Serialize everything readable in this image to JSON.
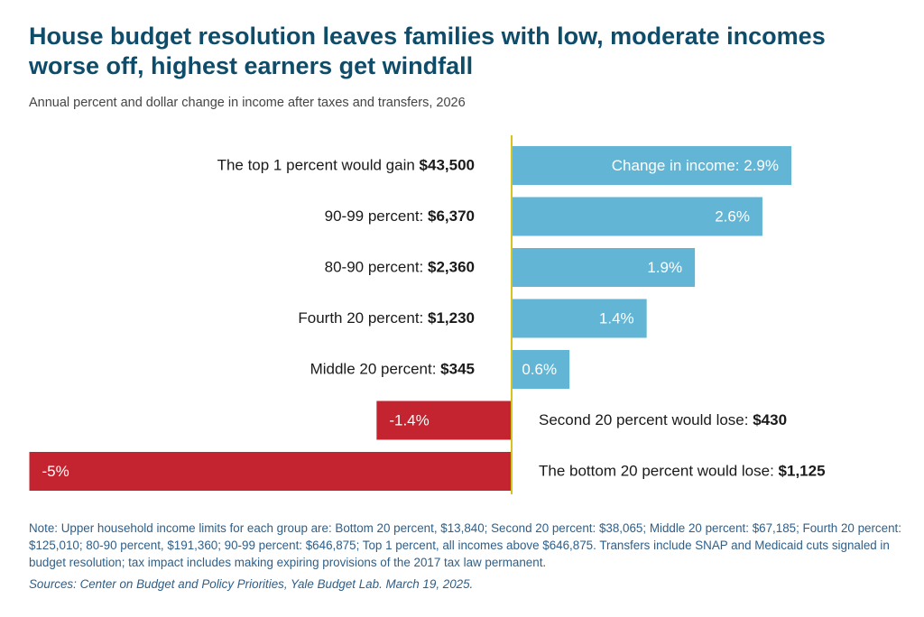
{
  "title": "House budget resolution leaves families with low, moderate incomes worse off, highest earners get windfall",
  "subtitle": "Annual percent and dollar change in income after taxes and transfers, 2026",
  "note": "Note: Upper household income limits for each group are: Bottom 20 percent, $13,840; Second 20 percent: $38,065; Middle 20 percent: $67,185; Fourth 20 percent: $125,010; 80-90 percent, $191,360; 90-99 percent: $646,875; Top 1 percent, all incomes above $646,875. Transfers include SNAP and Medicaid cuts signaled in budget resolution; tax impact includes making expiring provisions of the 2017 tax law permanent.",
  "source": "Sources: Center on Budget and Policy Priorities, Yale Budget Lab. March 19, 2025.",
  "colors": {
    "positive": "#62b5d4",
    "negative": "#c4242f",
    "axis": "#d9c21c",
    "title": "#0f4c6a",
    "note": "#2d5f8a"
  },
  "chart_data": {
    "type": "bar",
    "orientation": "horizontal",
    "unit": "percent change in income",
    "xlim": [
      -5,
      2.9
    ],
    "grid": false,
    "categories": [
      "The top 1 percent",
      "90-99 percent",
      "80-90 percent",
      "Fourth 20 percent",
      "Middle 20 percent",
      "Second 20 percent",
      "The bottom 20 percent"
    ],
    "values": [
      2.9,
      2.6,
      1.9,
      1.4,
      0.6,
      -1.4,
      -5
    ],
    "value_labels": [
      "Change in income: 2.9%",
      "2.6%",
      "1.9%",
      "1.4%",
      "0.6%",
      "-1.4%",
      "-5%"
    ],
    "dollar_changes": [
      43500,
      6370,
      2360,
      1230,
      345,
      -430,
      -1125
    ],
    "label_prefix": [
      "The top 1 percent would gain ",
      "90-99 percent: ",
      "80-90 percent: ",
      "Fourth 20 percent: ",
      "Middle 20 percent: ",
      "Second 20 percent would lose: ",
      "The bottom 20 percent would lose: "
    ],
    "label_amount": [
      "$43,500",
      "$6,370",
      "$2,360",
      "$1,230",
      "$345",
      "$430",
      "$1,125"
    ]
  }
}
